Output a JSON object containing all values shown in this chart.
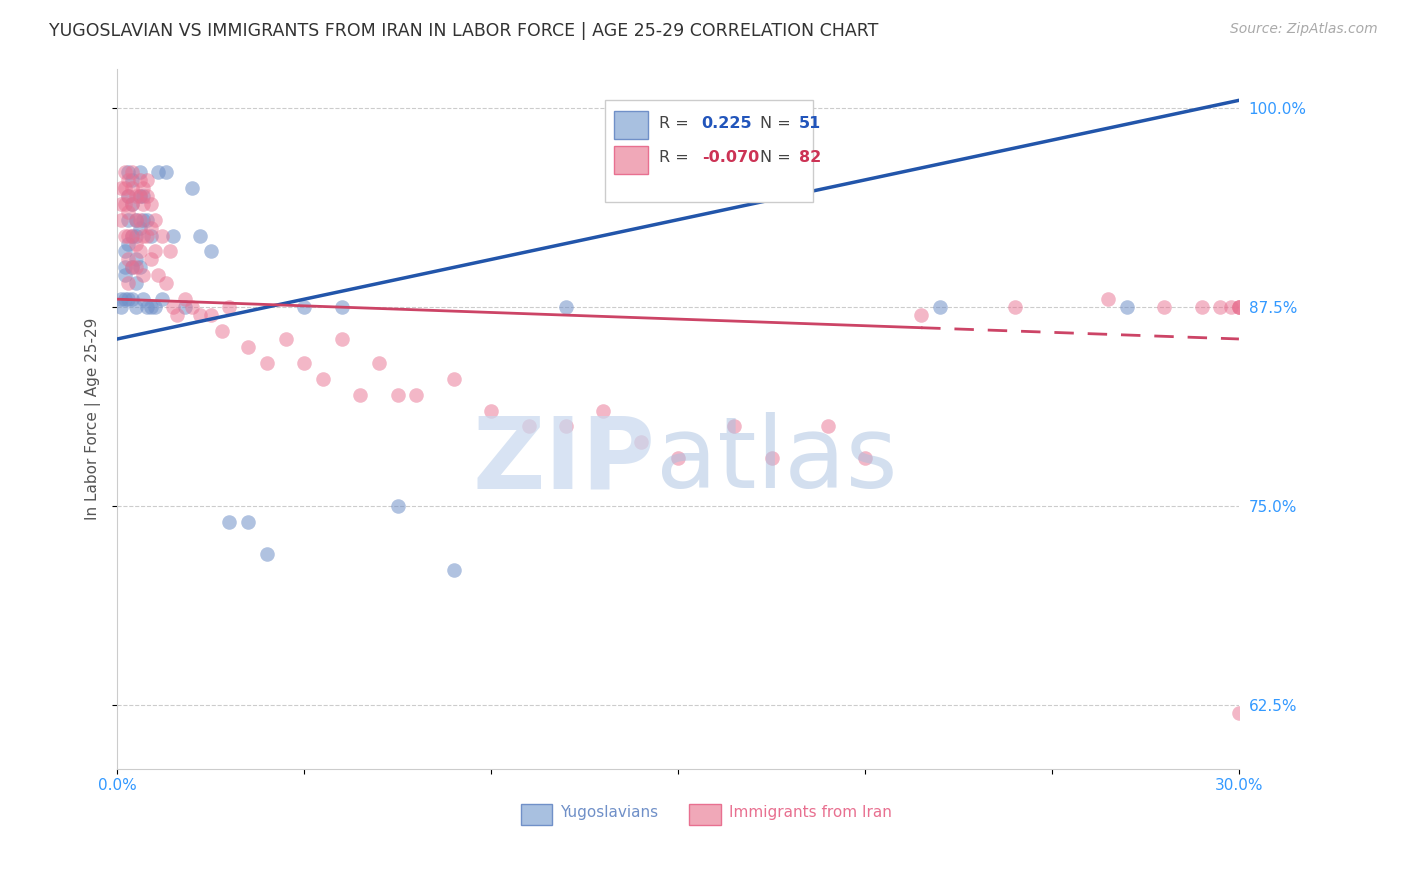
{
  "title": "YUGOSLAVIAN VS IMMIGRANTS FROM IRAN IN LABOR FORCE | AGE 25-29 CORRELATION CHART",
  "source": "Source: ZipAtlas.com",
  "ylabel": "In Labor Force | Age 25-29",
  "xlim": [
    0.0,
    0.3
  ],
  "ylim": [
    0.585,
    1.025
  ],
  "xticks": [
    0.0,
    0.05,
    0.1,
    0.15,
    0.2,
    0.25,
    0.3
  ],
  "xtick_labels": [
    "0.0%",
    "",
    "",
    "",
    "",
    "",
    "30.0%"
  ],
  "ytick_positions": [
    0.625,
    0.75,
    0.875,
    1.0
  ],
  "ytick_labels": [
    "62.5%",
    "75.0%",
    "87.5%",
    "100.0%"
  ],
  "legend_blue_r": "0.225",
  "legend_blue_n": "51",
  "legend_pink_r": "-0.070",
  "legend_pink_n": "82",
  "legend_blue_label": "Yugoslavians",
  "legend_pink_label": "Immigrants from Iran",
  "blue_color": "#7090c8",
  "pink_color": "#e87090",
  "trend_blue_color": "#2255aa",
  "trend_pink_color": "#cc4466",
  "background_color": "#ffffff",
  "grid_color": "#cccccc",
  "axis_label_color": "#3399ff",
  "title_color": "#333333",
  "blue_x": [
    0.001,
    0.001,
    0.002,
    0.002,
    0.002,
    0.002,
    0.003,
    0.003,
    0.003,
    0.003,
    0.003,
    0.004,
    0.004,
    0.004,
    0.004,
    0.004,
    0.005,
    0.005,
    0.005,
    0.005,
    0.005,
    0.006,
    0.006,
    0.006,
    0.006,
    0.007,
    0.007,
    0.007,
    0.008,
    0.008,
    0.009,
    0.009,
    0.01,
    0.011,
    0.012,
    0.013,
    0.015,
    0.018,
    0.02,
    0.022,
    0.025,
    0.03,
    0.035,
    0.04,
    0.05,
    0.06,
    0.075,
    0.09,
    0.12,
    0.22,
    0.27
  ],
  "blue_y": [
    0.88,
    0.875,
    0.91,
    0.9,
    0.895,
    0.88,
    0.96,
    0.945,
    0.93,
    0.915,
    0.88,
    0.955,
    0.94,
    0.92,
    0.9,
    0.88,
    0.93,
    0.92,
    0.905,
    0.89,
    0.875,
    0.96,
    0.945,
    0.925,
    0.9,
    0.945,
    0.93,
    0.88,
    0.93,
    0.875,
    0.92,
    0.875,
    0.875,
    0.96,
    0.88,
    0.96,
    0.92,
    0.875,
    0.95,
    0.92,
    0.91,
    0.74,
    0.74,
    0.72,
    0.875,
    0.875,
    0.75,
    0.71,
    0.875,
    0.875,
    0.875
  ],
  "pink_x": [
    0.001,
    0.001,
    0.001,
    0.002,
    0.002,
    0.002,
    0.002,
    0.003,
    0.003,
    0.003,
    0.003,
    0.003,
    0.003,
    0.004,
    0.004,
    0.004,
    0.004,
    0.004,
    0.005,
    0.005,
    0.005,
    0.005,
    0.006,
    0.006,
    0.006,
    0.006,
    0.007,
    0.007,
    0.007,
    0.007,
    0.008,
    0.008,
    0.008,
    0.009,
    0.009,
    0.009,
    0.01,
    0.01,
    0.011,
    0.012,
    0.013,
    0.014,
    0.015,
    0.016,
    0.018,
    0.02,
    0.022,
    0.025,
    0.028,
    0.03,
    0.035,
    0.04,
    0.045,
    0.05,
    0.055,
    0.06,
    0.065,
    0.07,
    0.075,
    0.08,
    0.09,
    0.1,
    0.11,
    0.12,
    0.13,
    0.14,
    0.15,
    0.165,
    0.175,
    0.19,
    0.2,
    0.215,
    0.24,
    0.265,
    0.28,
    0.29,
    0.295,
    0.298,
    0.3,
    0.3,
    0.3,
    0.3
  ],
  "pink_y": [
    0.95,
    0.94,
    0.93,
    0.96,
    0.95,
    0.94,
    0.92,
    0.955,
    0.945,
    0.935,
    0.92,
    0.905,
    0.89,
    0.96,
    0.95,
    0.94,
    0.92,
    0.9,
    0.945,
    0.93,
    0.915,
    0.9,
    0.955,
    0.945,
    0.93,
    0.91,
    0.95,
    0.94,
    0.92,
    0.895,
    0.955,
    0.945,
    0.92,
    0.94,
    0.925,
    0.905,
    0.93,
    0.91,
    0.895,
    0.92,
    0.89,
    0.91,
    0.875,
    0.87,
    0.88,
    0.875,
    0.87,
    0.87,
    0.86,
    0.875,
    0.85,
    0.84,
    0.855,
    0.84,
    0.83,
    0.855,
    0.82,
    0.84,
    0.82,
    0.82,
    0.83,
    0.81,
    0.8,
    0.8,
    0.81,
    0.79,
    0.78,
    0.8,
    0.78,
    0.8,
    0.78,
    0.87,
    0.875,
    0.88,
    0.875,
    0.875,
    0.875,
    0.875,
    0.875,
    0.875,
    0.62,
    0.875
  ],
  "trend_blue_x0": 0.0,
  "trend_blue_y0": 0.855,
  "trend_blue_x1": 0.3,
  "trend_blue_y1": 1.005,
  "trend_pink_x0": 0.0,
  "trend_pink_y0": 0.88,
  "trend_pink_x1": 0.3,
  "trend_pink_y1": 0.855,
  "trend_pink_solid_end": 0.215
}
